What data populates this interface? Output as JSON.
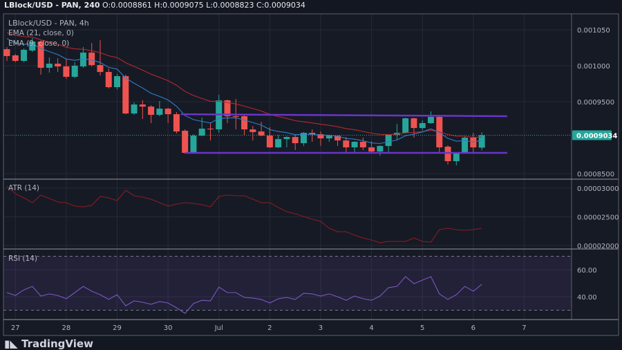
{
  "header": {
    "symbol_line": "LBlock/USD - PAN, 240",
    "ohlc": "O:0.0008861 H:0.0009075 L:0.0008823 C:0.0009034"
  },
  "legend": {
    "title": "LBlock/USD - PAN, 4h",
    "ema21": "EMA (21, close, 0)",
    "ema9": "EMA (9, close, 0)",
    "atr": "ATR (14)",
    "rsi": "RSI (14)"
  },
  "brand": "TradingView",
  "colors": {
    "up": "#26a69a",
    "down": "#ef5350",
    "ema21": "#b7282e",
    "ema9": "#2f7fc9",
    "atr": "#8b1c24",
    "rsi": "#7e57c2",
    "range_lines": "#6a35c9",
    "background": "#161a25",
    "grid": "#262a36"
  },
  "chart_data": [
    {
      "type": "candlestick",
      "timeframe": "4h",
      "x_tick_labels": [
        "27",
        "28",
        "29",
        "30",
        "Jul",
        "2",
        "3",
        "4",
        "5",
        "6",
        "7"
      ],
      "y_tick_labels": [
        "0.001050",
        "0.001000",
        "0.0009500",
        "0.0008500"
      ],
      "y_ticks": [
        0.00105,
        0.001,
        0.00095,
        0.00085
      ],
      "ylim": [
        0.000838,
        0.001072
      ],
      "current_price": 0.0009034,
      "current_price_label": "0.0009034",
      "candles_ohlc": [
        [
          0.001023,
          0.0010259,
          0.0010067,
          0.0010134
        ],
        [
          0.0010144,
          0.0010163,
          0.0010048,
          0.0010067
        ],
        [
          0.0010067,
          0.001024,
          0.0010048,
          0.0010221
        ],
        [
          0.0010211,
          0.0010384,
          0.0010192,
          0.0010336
        ],
        [
          0.0010336,
          0.0010355,
          0.0009875,
          0.0009971
        ],
        [
          0.0009971,
          0.0010115,
          0.0009903,
          0.0010028
        ],
        [
          0.0010028,
          0.0010105,
          0.0009913,
          0.000999
        ],
        [
          0.000999,
          0.0010096,
          0.0009817,
          0.0009846
        ],
        [
          0.0009846,
          0.0010048,
          0.0009827,
          0.001
        ],
        [
          0.000999,
          0.0010259,
          0.0009971,
          0.0010182
        ],
        [
          0.0010182,
          0.0010317,
          0.000999,
          0.0010009
        ],
        [
          0.0010009,
          0.0010355,
          0.0009865,
          0.0009913
        ],
        [
          0.0009913,
          0.0009961,
          0.0009683,
          0.0009702
        ],
        [
          0.0009702,
          0.0009884,
          0.0009673,
          0.0009855
        ],
        [
          0.0009855,
          0.0009875,
          0.0009326,
          0.0009336
        ],
        [
          0.0009336,
          0.000949,
          0.0009317,
          0.0009461
        ],
        [
          0.0009461,
          0.0009519,
          0.0009259,
          0.0009432
        ],
        [
          0.0009432,
          0.0009451,
          0.0009202,
          0.0009317
        ],
        [
          0.0009317,
          0.0009509,
          0.0009298,
          0.0009403
        ],
        [
          0.0009403,
          0.0009413,
          0.0009202,
          0.0009326
        ],
        [
          0.0009326,
          0.0009355,
          0.0009057,
          0.0009086
        ],
        [
          0.0009096,
          0.0009115,
          0.0008778,
          0.0008788
        ],
        [
          0.0008788,
          0.0009048,
          0.0008778,
          0.0009028
        ],
        [
          0.0009028,
          0.0009278,
          0.0009019,
          0.0009125
        ],
        [
          0.0009125,
          0.0009211,
          0.0008961,
          0.0009115
        ],
        [
          0.0009115,
          0.0009596,
          0.0009067,
          0.0009519
        ],
        [
          0.0009519,
          0.0009529,
          0.0009202,
          0.0009298
        ],
        [
          0.0009298,
          0.0009538,
          0.0009115,
          0.0009288
        ],
        [
          0.0009298,
          0.0009317,
          0.0009038,
          0.0009115
        ],
        [
          0.0009115,
          0.0009163,
          0.0008961,
          0.0009077
        ],
        [
          0.0009086,
          0.0009221,
          0.0009019,
          0.0009028
        ],
        [
          0.0009028,
          0.0009144,
          0.0008855,
          0.0008865
        ],
        [
          0.0008865,
          0.0009038,
          0.0008855,
          0.000898
        ],
        [
          0.000898,
          0.0009019,
          0.0008865,
          0.0009009
        ],
        [
          0.0009009,
          0.0009038,
          0.0008827,
          0.0008923
        ],
        [
          0.0008923,
          0.0009077,
          0.0008884,
          0.0009067
        ],
        [
          0.0009067,
          0.0009115,
          0.0008942,
          0.0009048
        ],
        [
          0.0009048,
          0.0009086,
          0.0008884,
          0.000899
        ],
        [
          0.000899,
          0.0009038,
          0.0008942,
          0.0009028
        ],
        [
          0.0009028,
          0.0009038,
          0.0008884,
          0.0008961
        ],
        [
          0.0008961,
          0.0009009,
          0.0008778,
          0.0008865
        ],
        [
          0.0008865,
          0.0008952,
          0.0008788,
          0.0008942
        ],
        [
          0.0008942,
          0.0009,
          0.0008827,
          0.0008865
        ],
        [
          0.0008865,
          0.0008952,
          0.0008798,
          0.0008807
        ],
        [
          0.0008807,
          0.0008894,
          0.000875,
          0.0008884
        ],
        [
          0.0008884,
          0.0009038,
          0.0008788,
          0.0009038
        ],
        [
          0.0009038,
          0.0009192,
          0.0008971,
          0.0009067
        ],
        [
          0.0009067,
          0.0009278,
          0.0009057,
          0.0009269
        ],
        [
          0.0009269,
          0.0009278,
          0.0009,
          0.0009134
        ],
        [
          0.0009134,
          0.000924,
          0.0009105,
          0.0009202
        ],
        [
          0.0009202,
          0.0009365,
          0.0009192,
          0.0009288
        ],
        [
          0.0009288,
          0.0009317,
          0.0008798,
          0.0008865
        ],
        [
          0.0008875,
          0.0008894,
          0.0008625,
          0.0008673
        ],
        [
          0.0008673,
          0.0008788,
          0.0008615,
          0.0008788
        ],
        [
          0.0008788,
          0.0009019,
          0.0008778,
          0.0009
        ],
        [
          0.0009,
          0.0009067,
          0.0008798,
          0.0008865
        ],
        [
          0.0008861,
          0.0009075,
          0.0008823,
          0.0009034
        ]
      ],
      "range_lines": [
        {
          "from_bar": 20.5,
          "to_bar": 59,
          "price_start": 0.0009326,
          "price_end": 0.0009298
        },
        {
          "from_bar": 21,
          "to_bar": 59,
          "price_start": 0.0008788,
          "price_end": 0.0008788
        }
      ],
      "overlays": [
        "EMA (21, close, 0)",
        "EMA (9, close, 0)"
      ]
    },
    {
      "type": "line",
      "name": "ATR (14)",
      "y_tick_labels": [
        "0.00003000",
        "0.00002500",
        "0.00002000"
      ],
      "y_ticks": [
        3e-05,
        2.5e-05,
        2e-05
      ],
      "values": [
        3.036e-05,
        2.904e-05,
        2.831e-05,
        2.747e-05,
        2.88e-05,
        2.819e-05,
        2.759e-05,
        2.747e-05,
        2.687e-05,
        2.675e-05,
        2.699e-05,
        2.855e-05,
        2.831e-05,
        2.783e-05,
        2.964e-05,
        2.867e-05,
        2.843e-05,
        2.807e-05,
        2.747e-05,
        2.687e-05,
        2.723e-05,
        2.747e-05,
        2.735e-05,
        2.711e-05,
        2.675e-05,
        2.855e-05,
        2.88e-05,
        2.867e-05,
        2.867e-05,
        2.807e-05,
        2.747e-05,
        2.747e-05,
        2.663e-05,
        2.59e-05,
        2.554e-05,
        2.506e-05,
        2.458e-05,
        2.422e-05,
        2.301e-05,
        2.241e-05,
        2.241e-05,
        2.181e-05,
        2.132e-05,
        2.096e-05,
        2.048e-05,
        2.072e-05,
        2.072e-05,
        2.072e-05,
        2.132e-05,
        2.072e-05,
        2.06e-05,
        2.277e-05,
        2.301e-05,
        2.277e-05,
        2.265e-05,
        2.277e-05,
        2.301e-05
      ]
    },
    {
      "type": "line",
      "name": "RSI (14)",
      "y_tick_labels": [
        "60.00",
        "40.00"
      ],
      "y_ticks": [
        60,
        40
      ],
      "bands": [
        70,
        30
      ],
      "values": [
        43.1,
        41.0,
        45.1,
        47.7,
        40.5,
        42.1,
        41.0,
        38.5,
        43.1,
        47.7,
        44.1,
        41.5,
        38.0,
        41.5,
        33.3,
        36.9,
        35.9,
        34.4,
        36.4,
        35.4,
        31.8,
        27.7,
        34.9,
        37.4,
        36.9,
        47.2,
        43.1,
        43.1,
        39.5,
        39.0,
        38.0,
        35.4,
        38.5,
        39.5,
        38.0,
        42.6,
        42.1,
        40.5,
        42.1,
        40.0,
        37.4,
        40.5,
        38.5,
        37.4,
        40.5,
        46.7,
        47.7,
        54.9,
        49.7,
        52.3,
        54.9,
        42.1,
        38.0,
        41.5,
        47.7,
        44.1,
        49.2
      ]
    }
  ]
}
